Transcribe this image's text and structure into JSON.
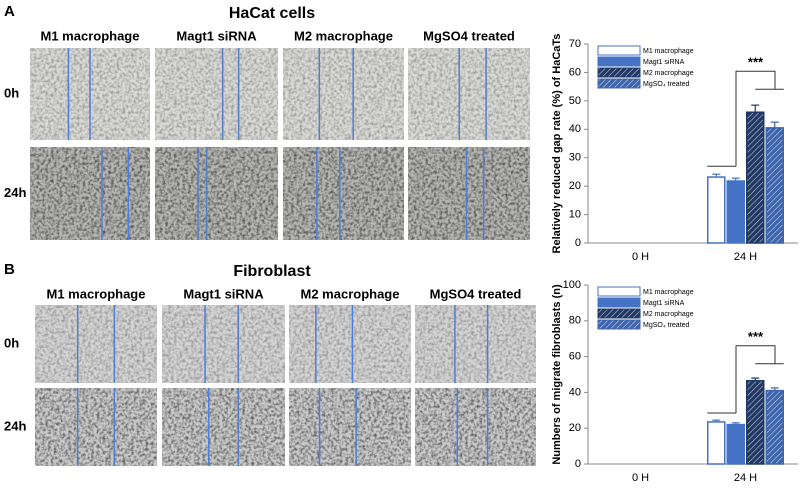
{
  "panels": [
    {
      "letter": "A",
      "title": "HaCat cells",
      "columns": [
        "M1 macrophage",
        "Magt1 siRNA",
        "M2 macrophage",
        "MgSO4 treated"
      ],
      "rows": [
        "0h",
        "24h"
      ]
    },
    {
      "letter": "B",
      "title": "Fibroblast",
      "columns": [
        "M1 macrophage",
        "Magt1 siRNA",
        "M2 macrophage",
        "MgSO4 treated"
      ],
      "rows": [
        "0h",
        "24h"
      ]
    }
  ],
  "chart_data": [
    {
      "type": "bar",
      "ylabel": "Relatively reduced gap rate (%) of HaCaTs",
      "categories": [
        "0 H",
        "24 H"
      ],
      "series": [
        {
          "name": "M1 macrophage",
          "color": "#ffffff",
          "edge": "#4472c4",
          "hatch": false,
          "values": [
            null,
            23.2
          ],
          "errors": [
            null,
            1
          ]
        },
        {
          "name": "Magt1 siRNA",
          "color": "#4472c4",
          "edge": "#4472c4",
          "hatch": false,
          "values": [
            null,
            21.8
          ],
          "errors": [
            null,
            1
          ]
        },
        {
          "name": "M2 macrophage",
          "color": "#1f3864",
          "edge": "#1f3864",
          "hatch": true,
          "values": [
            null,
            46
          ],
          "errors": [
            null,
            2.5
          ]
        },
        {
          "name": "MgSO₄ treated",
          "color": "#3d64ad",
          "edge": "#3d64ad",
          "hatch": true,
          "values": [
            null,
            40.5
          ],
          "errors": [
            null,
            2
          ]
        }
      ],
      "annotation": "***",
      "ylim": [
        0,
        70
      ],
      "yticks": [
        0,
        10,
        20,
        30,
        40,
        50,
        60,
        70
      ]
    },
    {
      "type": "bar",
      "ylabel": "Numbers of migrate fibroblasts (n)",
      "categories": [
        "0 H",
        "24 H"
      ],
      "series": [
        {
          "name": "M1 macrophage",
          "color": "#ffffff",
          "edge": "#4472c4",
          "hatch": false,
          "values": [
            null,
            23.5
          ],
          "errors": [
            null,
            1
          ]
        },
        {
          "name": "Magt1 siRNA",
          "color": "#4472c4",
          "edge": "#4472c4",
          "hatch": false,
          "values": [
            null,
            22
          ],
          "errors": [
            null,
            1
          ]
        },
        {
          "name": "M2 macrophage",
          "color": "#1f3864",
          "edge": "#1f3864",
          "hatch": true,
          "values": [
            null,
            46.5
          ],
          "errors": [
            null,
            1.5
          ]
        },
        {
          "name": "MgSO₄ treated",
          "color": "#3d64ad",
          "edge": "#3d64ad",
          "hatch": true,
          "values": [
            null,
            41
          ],
          "errors": [
            null,
            1.5
          ]
        }
      ],
      "annotation": "***",
      "ylim": [
        0,
        100
      ],
      "yticks": [
        0,
        20,
        40,
        60,
        80,
        100
      ]
    }
  ]
}
